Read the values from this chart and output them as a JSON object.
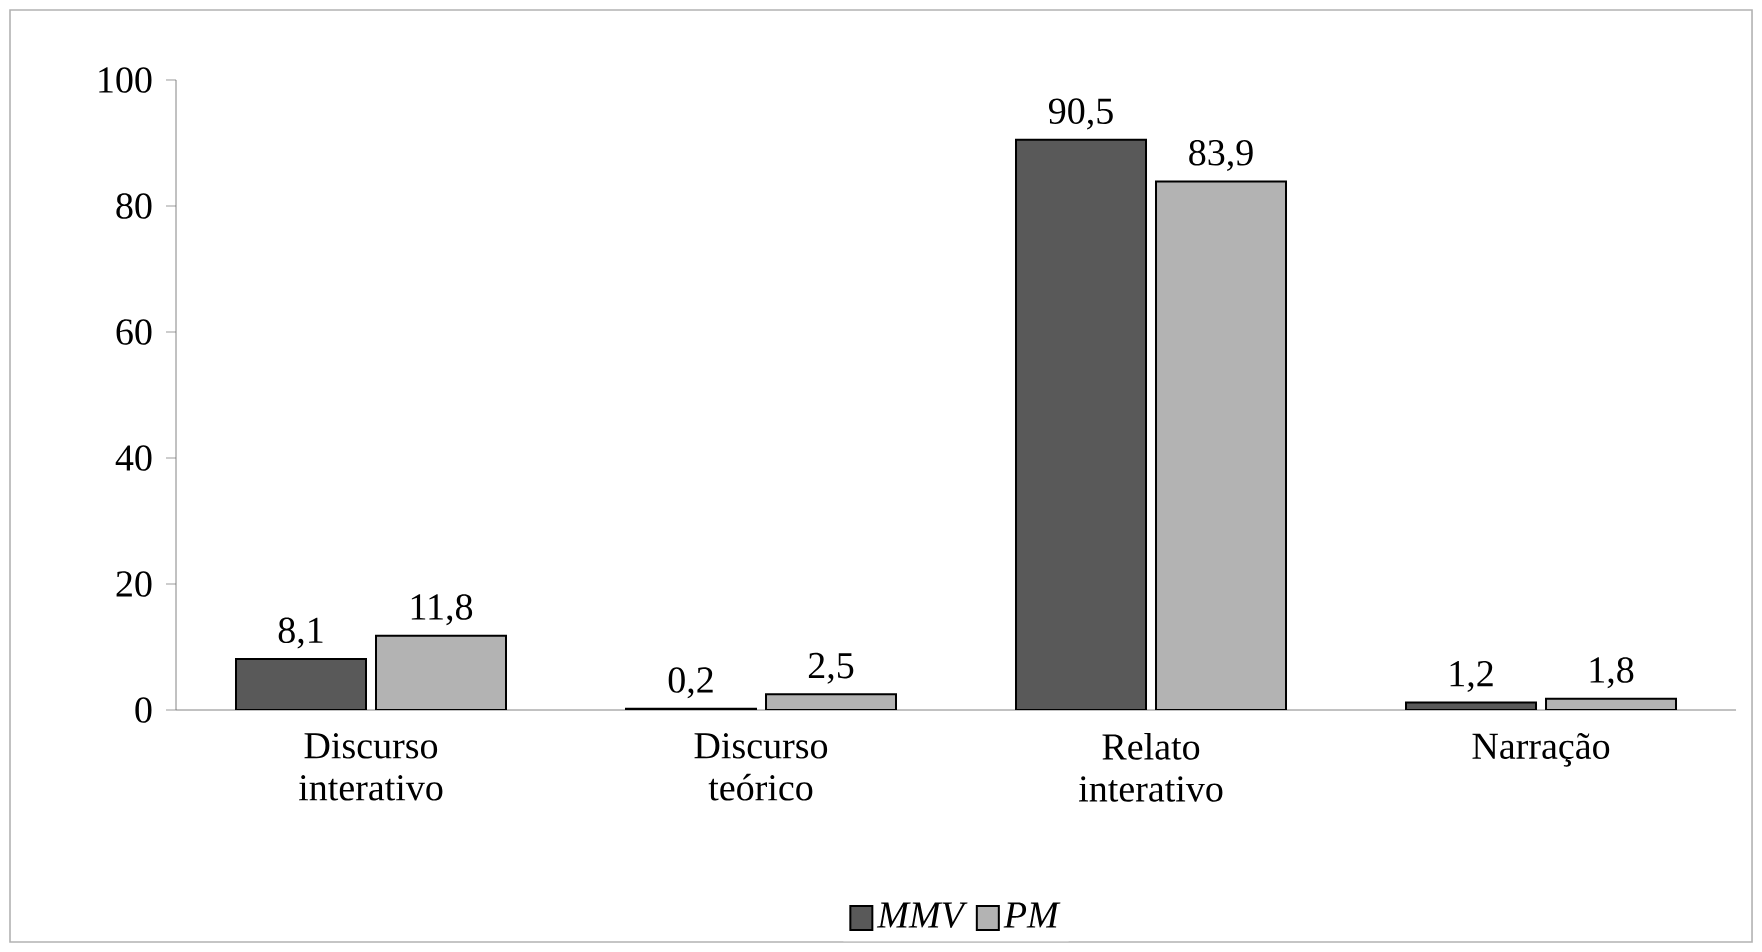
{
  "chart_data": {
    "type": "bar",
    "categories": [
      "Discurso interativo",
      "Discurso teórico",
      "Relato interativo",
      "Narração"
    ],
    "series": [
      {
        "name": "MMV",
        "color": "#595959",
        "values": [
          8.1,
          0.2,
          90.5,
          1.2
        ],
        "value_labels": [
          "8,1",
          "0,2",
          "90,5",
          "1,2"
        ]
      },
      {
        "name": "PM",
        "color": "#b3b3b3",
        "values": [
          11.8,
          2.5,
          83.9,
          1.8
        ],
        "value_labels": [
          "11,8",
          "2,5",
          "83,9",
          "1,8"
        ]
      }
    ],
    "ylim": [
      0,
      100
    ],
    "yticks": [
      0,
      20,
      40,
      60,
      80,
      100
    ],
    "grid": false,
    "legend": "bottom"
  }
}
